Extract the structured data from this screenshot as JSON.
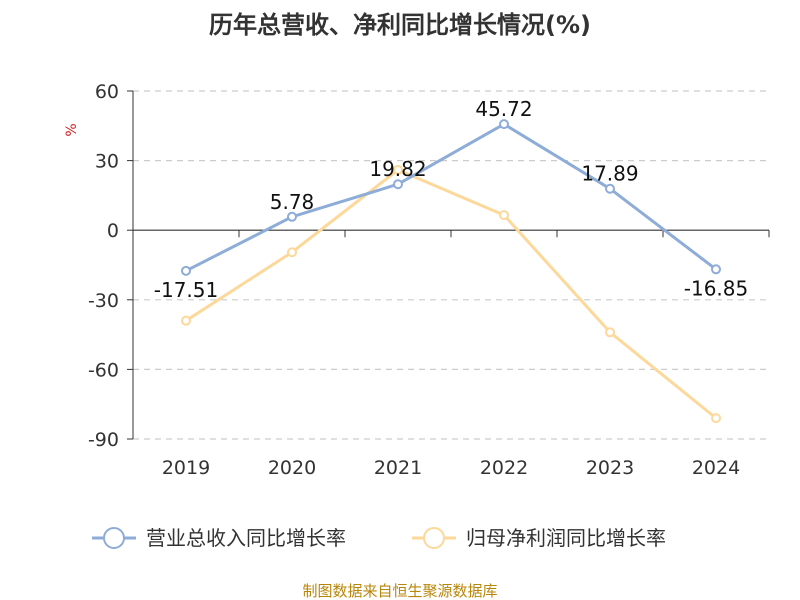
{
  "chart_data": {
    "type": "line",
    "title": "历年总营收、净利同比增长情况(%)",
    "ylabel": "%",
    "categories": [
      "2019",
      "2020",
      "2021",
      "2022",
      "2023",
      "2024"
    ],
    "yticks": [
      "60",
      "30",
      "0",
      "-30",
      "-60",
      "-90"
    ],
    "ylim": [
      -90,
      60
    ],
    "grid": true,
    "legend_position": "bottom",
    "series": [
      {
        "name": "营业总收入同比增长率",
        "color": "#8eacd8",
        "values": [
          -17.51,
          5.78,
          19.82,
          45.72,
          17.89,
          -16.85
        ],
        "labels": [
          "-17.51",
          "5.78",
          "19.82",
          "45.72",
          "17.89",
          "-16.85"
        ]
      },
      {
        "name": "归母净利润同比增长率",
        "color": "#fcd89a",
        "values": [
          -39.0,
          -9.5,
          26.0,
          6.5,
          -44.0,
          -81.0
        ]
      }
    ]
  },
  "footer": {
    "source": "制图数据来自恒生聚源数据库"
  }
}
